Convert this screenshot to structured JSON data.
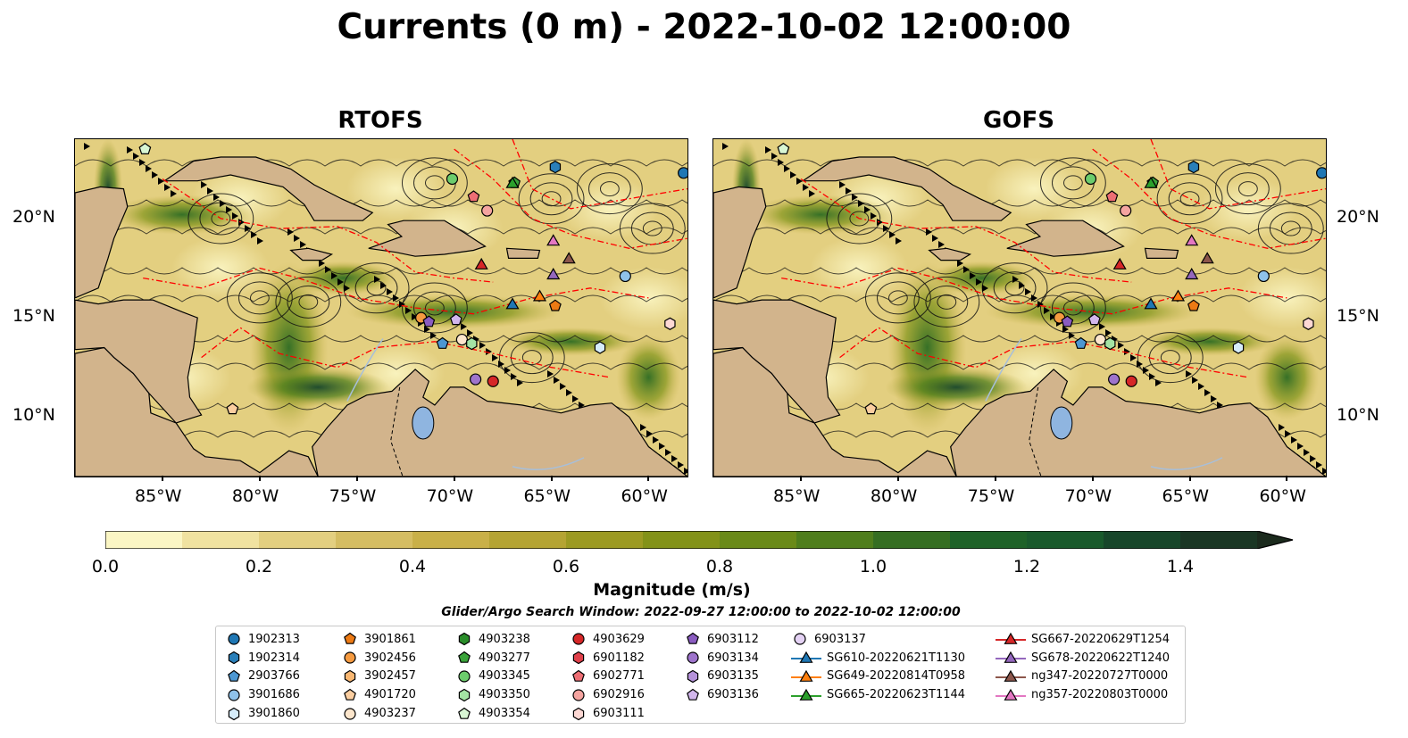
{
  "title": "Currents (0 m) - 2022-10-02 12:00:00",
  "panels": [
    {
      "title": "RTOFS"
    },
    {
      "title": "GOFS"
    }
  ],
  "axes": {
    "lon_labels": [
      "85°W",
      "80°W",
      "75°W",
      "70°W",
      "65°W",
      "60°W"
    ],
    "lat_labels": [
      "20°N",
      "15°N",
      "10°N"
    ]
  },
  "colorbar": {
    "label": "Magnitude (m/s)",
    "ticks": [
      "0.0",
      "0.2",
      "0.4",
      "0.6",
      "0.8",
      "1.0",
      "1.2",
      "1.4"
    ],
    "range": [
      0.0,
      1.5
    ],
    "extend": "max",
    "colors": [
      "#fbf6c4",
      "#f0e2a0",
      "#e3cf80",
      "#d5bd62",
      "#c9b048",
      "#b5a433",
      "#9c9a22",
      "#839218",
      "#6a8a18",
      "#4f7e1c",
      "#356e22",
      "#1e6228",
      "#195a2c",
      "#17462a",
      "#1a3624",
      "#1b2a1d"
    ]
  },
  "search_window": "Glider/Argo Search Window: 2022-09-27 12:00:00 to 2022-10-02 12:00:00",
  "legend": {
    "columns": [
      [
        {
          "label": "1902313",
          "marker": "circle",
          "color": "#1f77b4"
        },
        {
          "label": "1902314",
          "marker": "hexagon",
          "color": "#2a7fb9"
        },
        {
          "label": "2903766",
          "marker": "pentagon",
          "color": "#4c97d2"
        },
        {
          "label": "3901686",
          "marker": "circle",
          "color": "#8fc2ea"
        },
        {
          "label": "3901860",
          "marker": "hexagon",
          "color": "#d6ecfa"
        }
      ],
      [
        {
          "label": "3901861",
          "marker": "pentagon",
          "color": "#ec7a14"
        },
        {
          "label": "3902456",
          "marker": "circle",
          "color": "#f59a40"
        },
        {
          "label": "3902457",
          "marker": "hexagon",
          "color": "#f9b772"
        },
        {
          "label": "4901720",
          "marker": "pentagon",
          "color": "#fbcea0"
        },
        {
          "label": "4903237",
          "marker": "circle",
          "color": "#fde6cc"
        }
      ],
      [
        {
          "label": "4903238",
          "marker": "hexagon",
          "color": "#2a8d2a"
        },
        {
          "label": "4903277",
          "marker": "pentagon",
          "color": "#3aa33a"
        },
        {
          "label": "4903345",
          "marker": "circle",
          "color": "#6ccc6c"
        },
        {
          "label": "4903350",
          "marker": "hexagon",
          "color": "#a4e3a4"
        },
        {
          "label": "4903354",
          "marker": "pentagon",
          "color": "#d8f6d4"
        }
      ],
      [
        {
          "label": "4903629",
          "marker": "circle",
          "color": "#d62728"
        },
        {
          "label": "6901182",
          "marker": "hexagon",
          "color": "#e0404a"
        },
        {
          "label": "6902771",
          "marker": "pentagon",
          "color": "#ee6e74"
        },
        {
          "label": "6902916",
          "marker": "circle",
          "color": "#f5a4a0"
        },
        {
          "label": "6903111",
          "marker": "hexagon",
          "color": "#fdd8d4"
        }
      ],
      [
        {
          "label": "6903112",
          "marker": "pentagon",
          "color": "#8a5cc0"
        },
        {
          "label": "6903134",
          "marker": "circle",
          "color": "#9e74cc"
        },
        {
          "label": "6903135",
          "marker": "hexagon",
          "color": "#b592da"
        },
        {
          "label": "6903136",
          "marker": "pentagon",
          "color": "#d2b6ec"
        }
      ],
      [
        {
          "label": "6903137",
          "marker": "circle",
          "color": "#e4d2f4"
        },
        {
          "label": "SG610-20220621T1130",
          "marker": "triangle-line",
          "color": "#1f77b4"
        },
        {
          "label": "SG649-20220814T0958",
          "marker": "triangle-line",
          "color": "#ff7f0e"
        },
        {
          "label": "SG665-20220623T1144",
          "marker": "triangle-line",
          "color": "#2ca02c"
        }
      ],
      [
        {
          "label": "SG667-20220629T1254",
          "marker": "triangle-line",
          "color": "#d62728"
        },
        {
          "label": "SG678-20220622T1240",
          "marker": "triangle-line",
          "color": "#9467bd"
        },
        {
          "label": "ng347-20220727T0000",
          "marker": "triangle-line",
          "color": "#8c564b"
        },
        {
          "label": "ng357-20220803T0000",
          "marker": "triangle-line",
          "color": "#e377c2"
        }
      ]
    ]
  },
  "map_extent": {
    "lon": [
      -89.5,
      -58.0
    ],
    "lat": [
      7.0,
      24.0
    ]
  },
  "colors": {
    "land": "#d2b48c",
    "lake": "#8fb5e0",
    "river": "#a7bfda",
    "eez": "#ff0000"
  },
  "platforms": [
    {
      "id": "1902313",
      "marker": "circle",
      "color": "#1f77b4",
      "lon": -58.2,
      "lat": 22.3
    },
    {
      "id": "1902314",
      "marker": "hexagon",
      "color": "#2a7fb9",
      "lon": -64.8,
      "lat": 22.6
    },
    {
      "id": "2903766",
      "marker": "pentagon",
      "color": "#4c97d2",
      "lon": -70.6,
      "lat": 13.7
    },
    {
      "id": "3901686",
      "marker": "circle",
      "color": "#8fc2ea",
      "lon": -61.2,
      "lat": 17.1
    },
    {
      "id": "3901860",
      "marker": "hexagon",
      "color": "#d6ecfa",
      "lon": -62.5,
      "lat": 13.5
    },
    {
      "id": "3901861",
      "marker": "pentagon",
      "color": "#ec7a14",
      "lon": -64.8,
      "lat": 15.6
    },
    {
      "id": "3902456",
      "marker": "circle",
      "color": "#f59a40",
      "lon": -71.7,
      "lat": 15.0
    },
    {
      "id": "4903237",
      "marker": "circle",
      "color": "#fde6cc",
      "lon": -69.6,
      "lat": 13.9
    },
    {
      "id": "4901720",
      "marker": "pentagon",
      "color": "#fbcea0",
      "lon": -81.4,
      "lat": 10.4
    },
    {
      "id": "4903277",
      "marker": "pentagon",
      "color": "#3aa33a",
      "lon": -66.9,
      "lat": 21.8
    },
    {
      "id": "4903345",
      "marker": "circle",
      "color": "#6ccc6c",
      "lon": -70.1,
      "lat": 22.0
    },
    {
      "id": "4903350",
      "marker": "hexagon",
      "color": "#a4e3a4",
      "lon": -69.1,
      "lat": 13.7
    },
    {
      "id": "4903354",
      "marker": "pentagon",
      "color": "#d8f6d4",
      "lon": -85.9,
      "lat": 23.5
    },
    {
      "id": "4903629",
      "marker": "circle",
      "color": "#d62728",
      "lon": -68.0,
      "lat": 11.8
    },
    {
      "id": "6902771",
      "marker": "pentagon",
      "color": "#ee6e74",
      "lon": -69.0,
      "lat": 21.1
    },
    {
      "id": "6902916",
      "marker": "circle",
      "color": "#f5a4a0",
      "lon": -68.3,
      "lat": 20.4
    },
    {
      "id": "6903111",
      "marker": "hexagon",
      "color": "#fdd8d4",
      "lon": -58.9,
      "lat": 14.7
    },
    {
      "id": "6903112",
      "marker": "pentagon",
      "color": "#8a5cc0",
      "lon": -71.3,
      "lat": 14.8
    },
    {
      "id": "6903134",
      "marker": "circle",
      "color": "#9e74cc",
      "lon": -68.9,
      "lat": 11.9
    },
    {
      "id": "6903136",
      "marker": "pentagon",
      "color": "#d2b6ec",
      "lon": -69.9,
      "lat": 14.9
    },
    {
      "id": "SG610-20220621T1130",
      "marker": "triangle",
      "color": "#1f77b4",
      "lon": -67.0,
      "lat": 15.7
    },
    {
      "id": "SG649-20220814T0958",
      "marker": "triangle",
      "color": "#ff7f0e",
      "lon": -65.6,
      "lat": 16.1
    },
    {
      "id": "SG665-20220623T1144",
      "marker": "triangle",
      "color": "#2ca02c",
      "lon": -67.0,
      "lat": 21.8
    },
    {
      "id": "SG667-20220629T1254",
      "marker": "triangle",
      "color": "#d62728",
      "lon": -68.6,
      "lat": 17.7
    },
    {
      "id": "SG678-20220622T1240",
      "marker": "triangle",
      "color": "#9467bd",
      "lon": -64.9,
      "lat": 17.2
    },
    {
      "id": "ng347-20220727T0000",
      "marker": "triangle",
      "color": "#8c564b",
      "lon": -64.1,
      "lat": 18.0
    },
    {
      "id": "ng357-20220803T0000",
      "marker": "triangle",
      "color": "#e377c2",
      "lon": -64.9,
      "lat": 18.9
    }
  ]
}
